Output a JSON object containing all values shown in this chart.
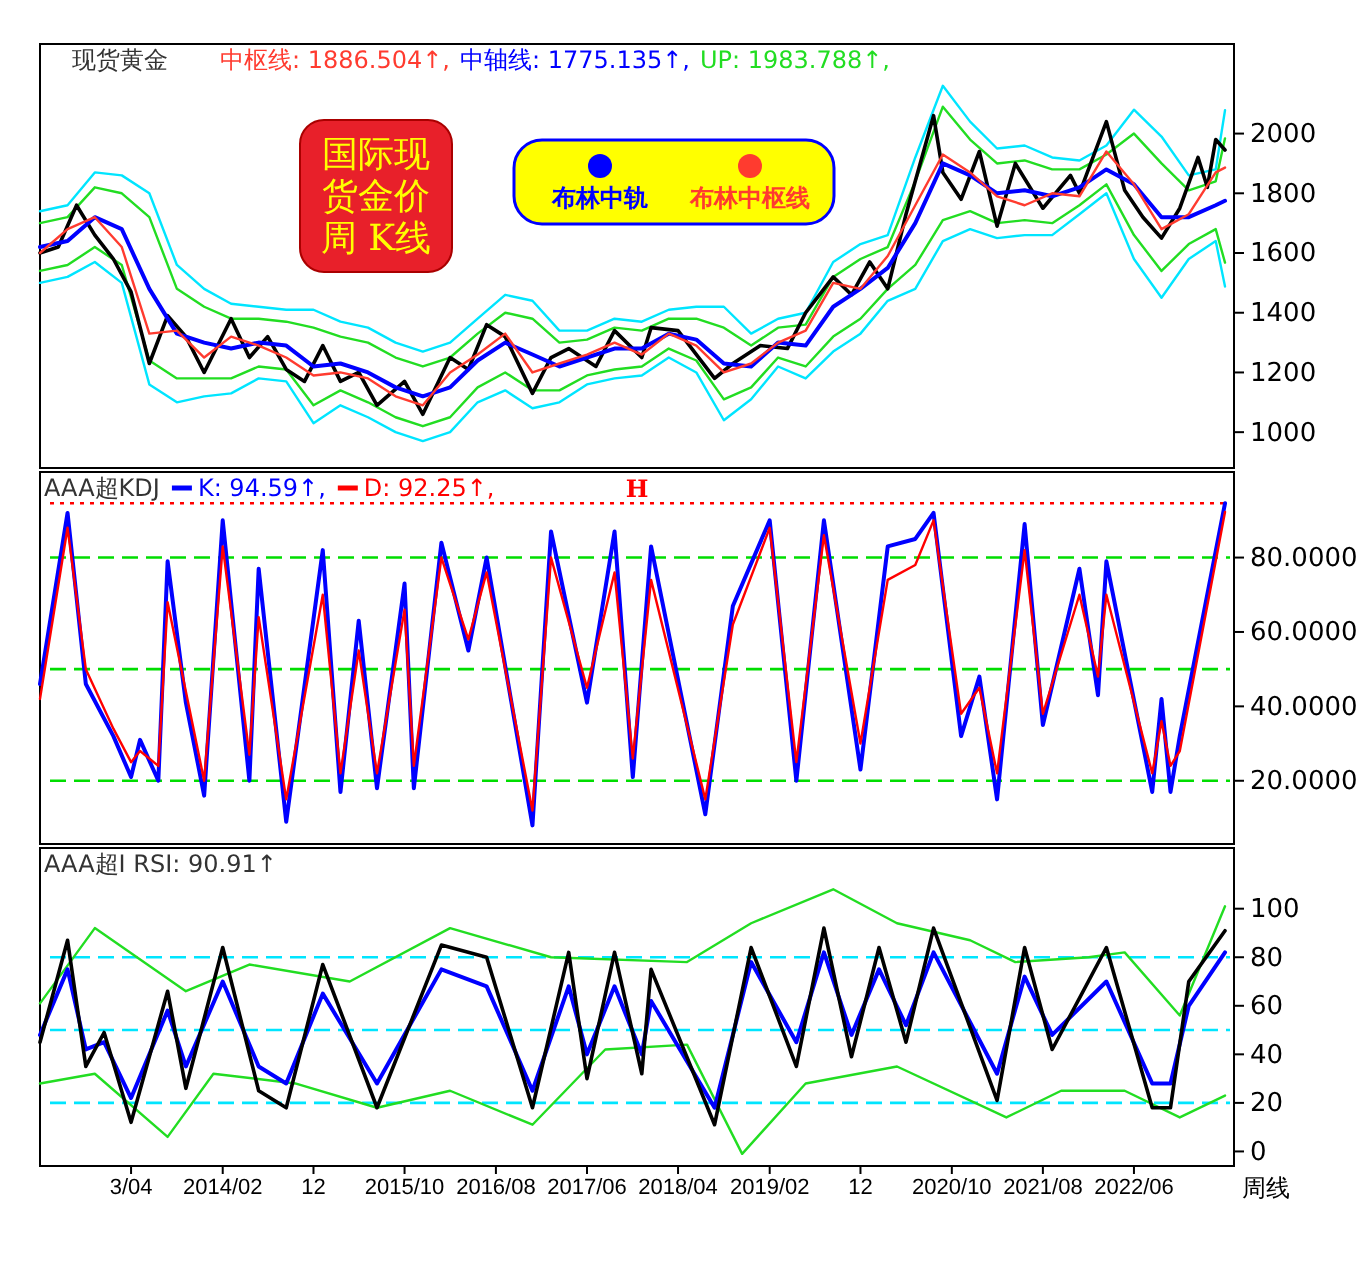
{
  "chart_data": [
    {
      "type": "line",
      "title": "现货黄金",
      "annotations": [
        "中枢线: 1886.504↑,",
        "中轴线: 1775.135↑,",
        "UP: 1983.788↑,",
        "国际现货金价周 K线"
      ],
      "xlim": [
        "2012-06",
        "2023-05"
      ],
      "ylim": [
        880,
        2300
      ],
      "yticks": [
        1000,
        1200,
        1400,
        1600,
        1800,
        2000
      ],
      "tick_labels": "y",
      "legend": "top",
      "series": [
        {
          "color": "#000000",
          "x": [
            "2012-06",
            "2012-08",
            "2012-10",
            "2012-12",
            "2013-02",
            "2013-04",
            "2013-06",
            "2013-08",
            "2013-10",
            "2013-12",
            "2014-03",
            "2014-05",
            "2014-07",
            "2014-09",
            "2014-11",
            "2015-01",
            "2015-03",
            "2015-05",
            "2015-07",
            "2015-10",
            "2015-12",
            "2016-03",
            "2016-05",
            "2016-07",
            "2016-09",
            "2016-12",
            "2017-02",
            "2017-04",
            "2017-07",
            "2017-09",
            "2017-12",
            "2018-01",
            "2018-04",
            "2018-08",
            "2018-10",
            "2019-01",
            "2019-04",
            "2019-06",
            "2019-09",
            "2019-11",
            "2020-01",
            "2020-03",
            "2020-05",
            "2020-08",
            "2020-09",
            "2020-11",
            "2021-01",
            "2021-03",
            "2021-05",
            "2021-08",
            "2021-11",
            "2021-12",
            "2022-03",
            "2022-05",
            "2022-07",
            "2022-09",
            "2022-11",
            "2023-01",
            "2023-02",
            "2023-03",
            "2023-04"
          ],
          "values": [
            1600,
            1620,
            1760,
            1660,
            1580,
            1470,
            1230,
            1390,
            1320,
            1200,
            1380,
            1250,
            1320,
            1210,
            1170,
            1290,
            1170,
            1200,
            1090,
            1170,
            1060,
            1250,
            1210,
            1360,
            1320,
            1130,
            1250,
            1280,
            1220,
            1340,
            1250,
            1350,
            1340,
            1180,
            1230,
            1290,
            1280,
            1400,
            1520,
            1460,
            1570,
            1480,
            1730,
            2060,
            1870,
            1780,
            1940,
            1690,
            1900,
            1750,
            1860,
            1800,
            2040,
            1810,
            1720,
            1650,
            1750,
            1920,
            1820,
            1980,
            1945
          ]
        },
        {
          "name": "布林中轨",
          "color": "#0000ff",
          "x": [
            "2012-06",
            "2012-09",
            "2012-12",
            "2013-03",
            "2013-06",
            "2013-09",
            "2013-12",
            "2014-03",
            "2014-06",
            "2014-09",
            "2014-12",
            "2015-03",
            "2015-06",
            "2015-09",
            "2015-12",
            "2016-03",
            "2016-06",
            "2016-09",
            "2016-12",
            "2017-03",
            "2017-06",
            "2017-09",
            "2017-12",
            "2018-03",
            "2018-06",
            "2018-09",
            "2018-12",
            "2019-03",
            "2019-06",
            "2019-09",
            "2019-12",
            "2020-03",
            "2020-06",
            "2020-09",
            "2020-12",
            "2021-03",
            "2021-06",
            "2021-09",
            "2021-12",
            "2022-03",
            "2022-06",
            "2022-09",
            "2022-12",
            "2023-03",
            "2023-04"
          ],
          "values": [
            1620,
            1640,
            1720,
            1680,
            1480,
            1330,
            1300,
            1280,
            1300,
            1290,
            1220,
            1230,
            1200,
            1150,
            1120,
            1150,
            1240,
            1300,
            1260,
            1220,
            1250,
            1280,
            1280,
            1330,
            1310,
            1230,
            1220,
            1300,
            1290,
            1420,
            1480,
            1550,
            1700,
            1900,
            1860,
            1800,
            1810,
            1790,
            1820,
            1880,
            1830,
            1720,
            1720,
            1760,
            1775
          ]
        },
        {
          "name": "布林中枢线",
          "color": "#ff3b2f",
          "x": [
            "2012-06",
            "2012-09",
            "2012-12",
            "2013-03",
            "2013-06",
            "2013-09",
            "2013-12",
            "2014-03",
            "2014-06",
            "2014-09",
            "2014-12",
            "2015-03",
            "2015-06",
            "2015-09",
            "2015-12",
            "2016-03",
            "2016-06",
            "2016-09",
            "2016-12",
            "2017-03",
            "2017-06",
            "2017-09",
            "2017-12",
            "2018-03",
            "2018-06",
            "2018-09",
            "2018-12",
            "2019-03",
            "2019-06",
            "2019-09",
            "2019-12",
            "2020-03",
            "2020-06",
            "2020-09",
            "2020-12",
            "2021-03",
            "2021-06",
            "2021-09",
            "2021-12",
            "2022-03",
            "2022-06",
            "2022-09",
            "2022-12",
            "2023-03",
            "2023-04"
          ],
          "values": [
            1600,
            1680,
            1720,
            1620,
            1330,
            1340,
            1250,
            1320,
            1290,
            1250,
            1190,
            1200,
            1180,
            1120,
            1090,
            1200,
            1260,
            1330,
            1200,
            1230,
            1260,
            1300,
            1260,
            1330,
            1290,
            1200,
            1230,
            1300,
            1340,
            1500,
            1480,
            1590,
            1760,
            1930,
            1870,
            1790,
            1760,
            1800,
            1790,
            1940,
            1830,
            1680,
            1730,
            1870,
            1886
          ]
        },
        {
          "color": "#22dd22",
          "x": [
            "2012-06",
            "2012-09",
            "2012-12",
            "2013-03",
            "2013-06",
            "2013-09",
            "2013-12",
            "2014-03",
            "2014-06",
            "2014-09",
            "2014-12",
            "2015-03",
            "2015-06",
            "2015-09",
            "2015-12",
            "2016-03",
            "2016-06",
            "2016-09",
            "2016-12",
            "2017-03",
            "2017-06",
            "2017-09",
            "2017-12",
            "2018-03",
            "2018-06",
            "2018-09",
            "2018-12",
            "2019-03",
            "2019-06",
            "2019-09",
            "2019-12",
            "2020-03",
            "2020-06",
            "2020-09",
            "2020-12",
            "2021-03",
            "2021-06",
            "2021-09",
            "2021-12",
            "2022-03",
            "2022-06",
            "2022-09",
            "2022-12",
            "2023-03",
            "2023-04"
          ],
          "values": [
            1700,
            1720,
            1820,
            1800,
            1720,
            1480,
            1420,
            1380,
            1380,
            1370,
            1350,
            1320,
            1300,
            1250,
            1220,
            1250,
            1330,
            1400,
            1380,
            1300,
            1310,
            1350,
            1340,
            1380,
            1380,
            1350,
            1290,
            1350,
            1360,
            1520,
            1580,
            1620,
            1840,
            2090,
            1980,
            1900,
            1910,
            1880,
            1880,
            1930,
            2000,
            1900,
            1810,
            1840,
            1984
          ]
        },
        {
          "color": "#22dd22",
          "x": [
            "2012-06",
            "2012-09",
            "2012-12",
            "2013-03",
            "2013-06",
            "2013-09",
            "2013-12",
            "2014-03",
            "2014-06",
            "2014-09",
            "2014-12",
            "2015-03",
            "2015-06",
            "2015-09",
            "2015-12",
            "2016-03",
            "2016-06",
            "2016-09",
            "2016-12",
            "2017-03",
            "2017-06",
            "2017-09",
            "2017-12",
            "2018-03",
            "2018-06",
            "2018-09",
            "2018-12",
            "2019-03",
            "2019-06",
            "2019-09",
            "2019-12",
            "2020-03",
            "2020-06",
            "2020-09",
            "2020-12",
            "2021-03",
            "2021-06",
            "2021-09",
            "2021-12",
            "2022-03",
            "2022-06",
            "2022-09",
            "2022-12",
            "2023-03",
            "2023-04"
          ],
          "values": [
            1540,
            1560,
            1620,
            1560,
            1240,
            1180,
            1180,
            1180,
            1220,
            1210,
            1090,
            1140,
            1100,
            1050,
            1020,
            1050,
            1150,
            1200,
            1140,
            1140,
            1190,
            1210,
            1220,
            1280,
            1240,
            1110,
            1150,
            1250,
            1220,
            1320,
            1380,
            1480,
            1560,
            1710,
            1740,
            1700,
            1710,
            1700,
            1760,
            1830,
            1660,
            1540,
            1630,
            1680,
            1568
          ]
        },
        {
          "color": "#00e5ff",
          "x": [
            "2012-06",
            "2012-09",
            "2012-12",
            "2013-03",
            "2013-06",
            "2013-09",
            "2013-12",
            "2014-03",
            "2014-06",
            "2014-09",
            "2014-12",
            "2015-03",
            "2015-06",
            "2015-09",
            "2015-12",
            "2016-03",
            "2016-06",
            "2016-09",
            "2016-12",
            "2017-03",
            "2017-06",
            "2017-09",
            "2017-12",
            "2018-03",
            "2018-06",
            "2018-09",
            "2018-12",
            "2019-03",
            "2019-06",
            "2019-09",
            "2019-12",
            "2020-03",
            "2020-06",
            "2020-09",
            "2020-12",
            "2021-03",
            "2021-06",
            "2021-09",
            "2021-12",
            "2022-03",
            "2022-06",
            "2022-09",
            "2022-12",
            "2023-03",
            "2023-04"
          ],
          "values": [
            1740,
            1760,
            1870,
            1860,
            1800,
            1560,
            1480,
            1430,
            1420,
            1410,
            1410,
            1370,
            1350,
            1300,
            1270,
            1300,
            1380,
            1460,
            1440,
            1340,
            1340,
            1380,
            1370,
            1410,
            1420,
            1420,
            1330,
            1380,
            1400,
            1570,
            1630,
            1660,
            1920,
            2160,
            2040,
            1950,
            1960,
            1920,
            1910,
            1960,
            2080,
            1990,
            1860,
            1880,
            2078
          ]
        },
        {
          "color": "#00e5ff",
          "x": [
            "2012-06",
            "2012-09",
            "2012-12",
            "2013-03",
            "2013-06",
            "2013-09",
            "2013-12",
            "2014-03",
            "2014-06",
            "2014-09",
            "2014-12",
            "2015-03",
            "2015-06",
            "2015-09",
            "2015-12",
            "2016-03",
            "2016-06",
            "2016-09",
            "2016-12",
            "2017-03",
            "2017-06",
            "2017-09",
            "2017-12",
            "2018-03",
            "2018-06",
            "2018-09",
            "2018-12",
            "2019-03",
            "2019-06",
            "2019-09",
            "2019-12",
            "2020-03",
            "2020-06",
            "2020-09",
            "2020-12",
            "2021-03",
            "2021-06",
            "2021-09",
            "2021-12",
            "2022-03",
            "2022-06",
            "2022-09",
            "2022-12",
            "2023-03",
            "2023-04"
          ],
          "values": [
            1500,
            1520,
            1570,
            1500,
            1160,
            1100,
            1120,
            1130,
            1180,
            1170,
            1030,
            1090,
            1050,
            1000,
            970,
            1000,
            1100,
            1140,
            1080,
            1100,
            1160,
            1180,
            1190,
            1250,
            1200,
            1040,
            1110,
            1220,
            1180,
            1270,
            1330,
            1440,
            1480,
            1640,
            1680,
            1650,
            1660,
            1660,
            1730,
            1800,
            1580,
            1450,
            1580,
            1640,
            1488
          ]
        }
      ]
    },
    {
      "type": "line",
      "title": "AAA超KDJ",
      "legend": "top left",
      "xlim": [
        "2012-06",
        "2023-05"
      ],
      "ylim": [
        3,
        103
      ],
      "yticks": [
        {
          "value": 20,
          "label": "20.0000"
        },
        {
          "value": 40,
          "label": "40.0000"
        },
        {
          "value": 60,
          "label": "60.0000"
        },
        {
          "value": 80,
          "label": "80.0000"
        }
      ],
      "tick_labels": "y",
      "ref_lines": [
        {
          "axis": "y",
          "value": 20,
          "color": "#00dd00",
          "line_style": "dashed"
        },
        {
          "axis": "y",
          "value": 50,
          "color": "#00dd00",
          "line_style": "dashed"
        },
        {
          "axis": "y",
          "value": 80,
          "color": "#00dd00",
          "line_style": "dashed"
        },
        {
          "axis": "y",
          "value": 94.6,
          "label": "H",
          "color": "#ff0000",
          "line_style": "dotted"
        }
      ],
      "series": [
        {
          "name": "K: 94.59↑,",
          "color": "#0000ff",
          "x": [
            "2012-06",
            "2012-09",
            "2012-11",
            "2013-02",
            "2013-04",
            "2013-05",
            "2013-07",
            "2013-08",
            "2013-10",
            "2013-12",
            "2014-02",
            "2014-05",
            "2014-06",
            "2014-09",
            "2015-01",
            "2015-03",
            "2015-05",
            "2015-07",
            "2015-10",
            "2015-11",
            "2016-02",
            "2016-05",
            "2016-07",
            "2016-12",
            "2017-02",
            "2017-06",
            "2017-09",
            "2017-11",
            "2018-01",
            "2018-07",
            "2018-10",
            "2019-02",
            "2019-05",
            "2019-08",
            "2019-12",
            "2020-03",
            "2020-06",
            "2020-08",
            "2020-11",
            "2021-01",
            "2021-03",
            "2021-06",
            "2021-08",
            "2021-12",
            "2022-02",
            "2022-03",
            "2022-08",
            "2022-09",
            "2022-10",
            "2022-11",
            "2023-04"
          ],
          "values": [
            46,
            92,
            46,
            32,
            21,
            31,
            20,
            79,
            41,
            16,
            90,
            20,
            77,
            9,
            82,
            17,
            63,
            18,
            73,
            18,
            84,
            55,
            80,
            8,
            87,
            41,
            87,
            21,
            83,
            11,
            67,
            90,
            20,
            90,
            23,
            83,
            85,
            92,
            32,
            48,
            15,
            89,
            35,
            77,
            43,
            79,
            17,
            42,
            17,
            32,
            94.59
          ]
        },
        {
          "name": "D: 92.25↑,",
          "color": "#ff0000",
          "x": [
            "2012-06",
            "2012-09",
            "2012-11",
            "2013-02",
            "2013-04",
            "2013-05",
            "2013-07",
            "2013-08",
            "2013-10",
            "2013-12",
            "2014-02",
            "2014-05",
            "2014-06",
            "2014-09",
            "2015-01",
            "2015-03",
            "2015-05",
            "2015-07",
            "2015-10",
            "2015-11",
            "2016-02",
            "2016-05",
            "2016-07",
            "2016-12",
            "2017-02",
            "2017-06",
            "2017-09",
            "2017-11",
            "2018-01",
            "2018-07",
            "2018-10",
            "2019-02",
            "2019-05",
            "2019-08",
            "2019-12",
            "2020-03",
            "2020-06",
            "2020-08",
            "2020-11",
            "2021-01",
            "2021-03",
            "2021-06",
            "2021-08",
            "2021-12",
            "2022-02",
            "2022-03",
            "2022-08",
            "2022-09",
            "2022-10",
            "2022-11",
            "2023-04"
          ],
          "values": [
            42,
            88,
            50,
            34,
            25,
            28,
            24,
            68,
            44,
            20,
            83,
            27,
            64,
            15,
            70,
            22,
            55,
            22,
            66,
            24,
            80,
            58,
            76,
            12,
            80,
            45,
            76,
            26,
            74,
            15,
            62,
            88,
            25,
            86,
            30,
            74,
            78,
            90,
            38,
            45,
            22,
            82,
            38,
            70,
            48,
            70,
            22,
            36,
            24,
            28,
            92.25
          ]
        }
      ]
    },
    {
      "type": "line",
      "title": "AAA超I RSI: 90.91↑",
      "annotations": [
        "周线"
      ],
      "xlim": [
        "2012-06",
        "2023-05"
      ],
      "xticks": [
        {
          "value": "2013-04",
          "label": "3/04"
        },
        {
          "value": "2014-02",
          "label": "2014/02"
        },
        {
          "value": "2014-12",
          "label": "12"
        },
        {
          "value": "2015-10",
          "label": "2015/10"
        },
        {
          "value": "2016-08",
          "label": "2016/08"
        },
        {
          "value": "2017-06",
          "label": "2017/06"
        },
        {
          "value": "2018-04",
          "label": "2018/04"
        },
        {
          "value": "2019-02",
          "label": "2019/02"
        },
        {
          "value": "2019-12",
          "label": "12"
        },
        {
          "value": "2020-10",
          "label": "2020/10"
        },
        {
          "value": "2021-08",
          "label": "2021/08"
        },
        {
          "value": "2022-06",
          "label": "2022/06"
        }
      ],
      "ylim": [
        -6,
        125
      ],
      "yticks": [
        0,
        20,
        40,
        60,
        80,
        100
      ],
      "ref_lines": [
        {
          "axis": "y",
          "value": 20,
          "color": "#00e5ff",
          "line_style": "dashed"
        },
        {
          "axis": "y",
          "value": 50,
          "color": "#00e5ff",
          "line_style": "dashed"
        },
        {
          "axis": "y",
          "value": 80,
          "color": "#00e5ff",
          "line_style": "dashed"
        }
      ],
      "series": [
        {
          "color": "#22dd22",
          "x": [
            "2012-06",
            "2012-12",
            "2013-10",
            "2014-05",
            "2015-04",
            "2016-03",
            "2017-02",
            "2018-05",
            "2018-12",
            "2019-09",
            "2020-04",
            "2020-12",
            "2021-05",
            "2022-01",
            "2022-05",
            "2022-11",
            "2023-04"
          ],
          "values": [
            61,
            92,
            66,
            77,
            70,
            92,
            80,
            78,
            94,
            108,
            94,
            87,
            78,
            80,
            82,
            56,
            101
          ]
        },
        {
          "color": "#22dd22",
          "x": [
            "2012-06",
            "2012-12",
            "2013-08",
            "2014-01",
            "2014-10",
            "2015-07",
            "2016-03",
            "2016-12",
            "2017-08",
            "2018-05",
            "2018-11",
            "2019-06",
            "2020-04",
            "2021-04",
            "2021-10",
            "2022-05",
            "2022-11",
            "2023-04"
          ],
          "values": [
            28,
            32,
            6,
            32,
            28,
            18,
            25,
            11,
            42,
            44,
            -1,
            28,
            35,
            14,
            25,
            25,
            14,
            23
          ]
        },
        {
          "color": "#000000",
          "x": [
            "2012-06",
            "2012-09",
            "2012-11",
            "2013-01",
            "2013-04",
            "2013-08",
            "2013-10",
            "2014-02",
            "2014-06",
            "2014-09",
            "2015-01",
            "2015-07",
            "2016-02",
            "2016-07",
            "2016-12",
            "2017-04",
            "2017-06",
            "2017-09",
            "2017-12",
            "2018-01",
            "2018-08",
            "2018-12",
            "2019-05",
            "2019-08",
            "2019-11",
            "2020-02",
            "2020-05",
            "2020-08",
            "2021-03",
            "2021-06",
            "2021-09",
            "2022-03",
            "2022-08",
            "2022-10",
            "2022-12",
            "2023-04"
          ],
          "values": [
            45,
            87,
            35,
            49,
            12,
            66,
            26,
            84,
            25,
            18,
            77,
            18,
            85,
            80,
            18,
            82,
            30,
            82,
            32,
            75,
            11,
            84,
            35,
            92,
            39,
            84,
            45,
            92,
            21,
            84,
            42,
            84,
            18,
            18,
            70,
            90.91
          ]
        },
        {
          "color": "#0000ff",
          "x": [
            "2012-06",
            "2012-09",
            "2012-11",
            "2013-01",
            "2013-04",
            "2013-08",
            "2013-10",
            "2014-02",
            "2014-06",
            "2014-09",
            "2015-01",
            "2015-07",
            "2016-02",
            "2016-07",
            "2016-12",
            "2017-04",
            "2017-06",
            "2017-09",
            "2017-12",
            "2018-01",
            "2018-08",
            "2018-12",
            "2019-05",
            "2019-08",
            "2019-11",
            "2020-02",
            "2020-05",
            "2020-08",
            "2021-03",
            "2021-06",
            "2021-09",
            "2022-03",
            "2022-08",
            "2022-10",
            "2022-12",
            "2023-04"
          ],
          "values": [
            48,
            75,
            42,
            45,
            22,
            58,
            35,
            70,
            35,
            28,
            65,
            28,
            75,
            68,
            25,
            68,
            40,
            68,
            40,
            62,
            18,
            78,
            45,
            82,
            48,
            75,
            52,
            82,
            32,
            72,
            48,
            70,
            28,
            28,
            60,
            82
          ]
        }
      ]
    }
  ]
}
